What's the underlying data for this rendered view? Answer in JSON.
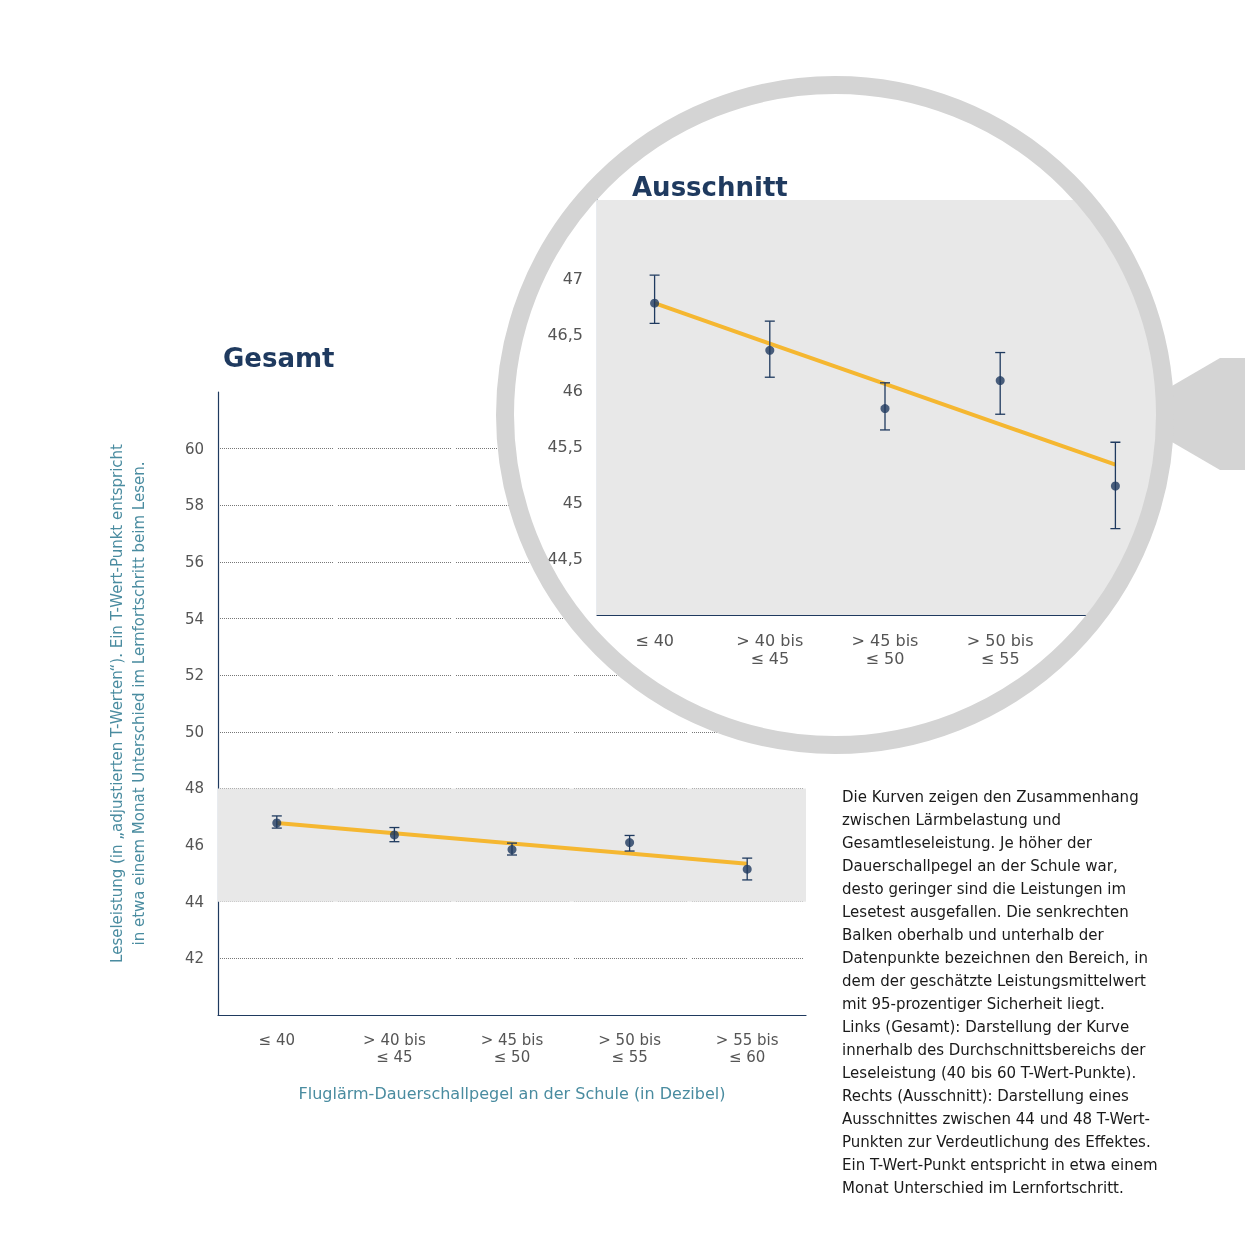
{
  "chart_data": [
    {
      "type": "scatter",
      "title": "Gesamt",
      "xlabel": "Fluglärm-Dauerschallpegel an der Schule (in Dezibel)",
      "ylabel": "Leseleistung (in „adjustierten T-Werten“). Ein T-Wert-Punkt entspricht\nin etwa einem Monat Unterschied im Lernfortschritt beim Lesen.",
      "categories": [
        "≤ 40",
        "> 40 bis\n≤ 45",
        "> 45 bis\n≤ 50",
        "> 50 bis\n≤ 55",
        "> 55 bis\n≤ 60"
      ],
      "ylim": [
        40,
        62
      ],
      "yticks": [
        42,
        44,
        46,
        48,
        50,
        52,
        54,
        56,
        58,
        60
      ],
      "grid": "y",
      "bands": [
        {
          "axis": "y",
          "from": 44,
          "to": 48,
          "color": "#e8e8e8"
        }
      ],
      "series": [
        {
          "marker": "circle",
          "color": "#1f3a5f",
          "values": [
            46.78,
            46.36,
            45.84,
            46.09,
            45.15
          ],
          "errors": [
            [
              46.6,
              47.03
            ],
            [
              46.12,
              46.62
            ],
            [
              45.65,
              46.07
            ],
            [
              45.79,
              46.34
            ],
            [
              44.77,
              45.54
            ]
          ]
        },
        {
          "type": "line",
          "marker": "none",
          "color": "#f5b731",
          "values": [
            46.78,
            46.42,
            46.06,
            45.7,
            45.34
          ]
        }
      ],
      "annotations": [
        "Die Kurven zeigen den Zusammenhang zwischen Lärmbelastung und Gesamtleseleistung. Je höher der Dauerschallpegel an der Schule war, desto geringer sind die Leistungen im Lesetest ausgefallen. Die senkrechten Balken oberhalb und unterhalb der Datenpunkte bezeichnen den Bereich, in dem der geschätzte Leistungsmittelwert mit 95-prozentiger Sicherheit liegt.\nLinks (Gesamt): Darstellung der Kurve innerhalb des Durchschnittsbereichs der Leseleistung (40 bis 60 T-Wert-Punkte).\nRechts (Ausschnitt): Darstellung eines Ausschnittes zwischen 44 und 48 T-Wert-Punkten zur Verdeutlichung des Effektes. Ein T-Wert-Punkt entspricht in etwa einem Monat Unterschied im Lernfortschritt."
      ]
    },
    {
      "type": "scatter",
      "title": "Ausschnitt",
      "categories": [
        "≤ 40",
        "> 40 bis\n≤ 45",
        "> 45 bis\n≤ 50",
        "> 50 bis\n≤ 55",
        null
      ],
      "ylim": [
        44,
        47.7
      ],
      "yticks": [
        {
          "value": 44.5,
          "label": "44,5"
        },
        {
          "value": 45,
          "label": "45"
        },
        {
          "value": 45.5,
          "label": "45,5"
        },
        {
          "value": 46,
          "label": "46"
        },
        {
          "value": 46.5,
          "label": "46,5"
        },
        {
          "value": 47,
          "label": "47"
        }
      ],
      "grid": "y",
      "bands": [
        {
          "axis": "y",
          "from": 44,
          "to": 47.7,
          "color": "#e8e8e8"
        }
      ],
      "series": [
        {
          "marker": "circle",
          "color": "#1f3a5f",
          "values": [
            46.78,
            46.36,
            45.84,
            46.09,
            45.15
          ],
          "errors": [
            [
              46.6,
              47.03
            ],
            [
              46.12,
              46.62
            ],
            [
              45.65,
              46.07
            ],
            [
              45.79,
              46.34
            ],
            [
              44.77,
              45.54
            ]
          ]
        },
        {
          "type": "line",
          "marker": "none",
          "color": "#f5b731",
          "values": [
            46.78,
            46.42,
            46.06,
            45.7,
            45.34
          ]
        }
      ]
    }
  ]
}
